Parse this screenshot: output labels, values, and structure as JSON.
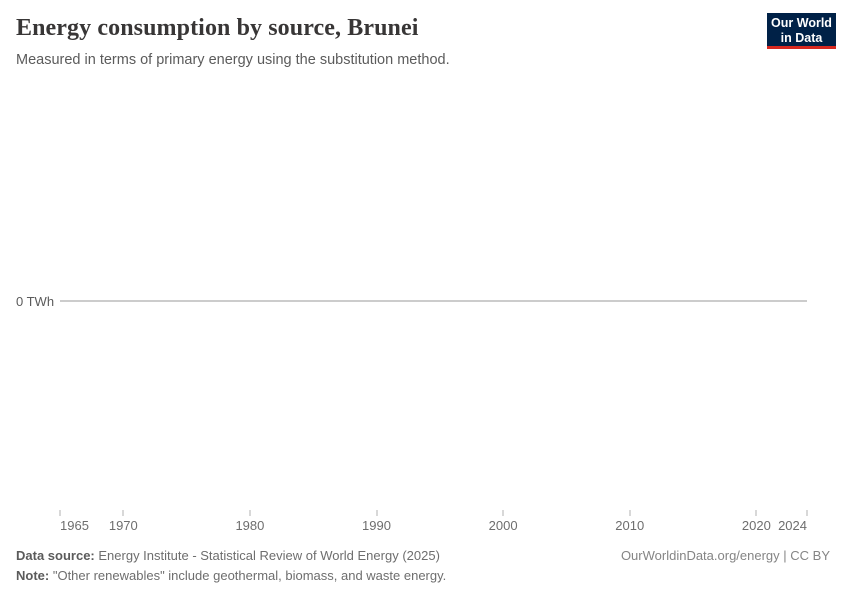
{
  "header": {
    "title": "Energy consumption by source, Brunei",
    "subtitle": "Measured in terms of primary energy using the substitution method."
  },
  "logo": {
    "line1": "Our World",
    "line2": "in Data",
    "bg_color": "#002147",
    "accent_color": "#d8281f"
  },
  "chart_data": {
    "type": "line",
    "title": "Energy consumption by source, Brunei",
    "subtitle": "Measured in terms of primary energy using the substitution method.",
    "unit": "TWh",
    "x_axis": {
      "range": [
        1965,
        2024
      ],
      "ticks": [
        1965,
        1970,
        1980,
        1990,
        2000,
        2010,
        2020,
        2024
      ]
    },
    "y_axis": {
      "ticks": [
        {
          "value": 0,
          "label": "0 TWh"
        }
      ]
    },
    "series": [],
    "grid": false,
    "legend": "none"
  },
  "colors": {
    "axis_line": "#cccccc",
    "tick_mark": "#b0b0b0",
    "tick_label": "#6e6e6e",
    "title": "#383636",
    "subtitle": "#5b5b5b"
  },
  "footer": {
    "source_label": "Data source:",
    "source_text": "Energy Institute - Statistical Review of World Energy (2025)",
    "note_label": "Note:",
    "note_text": "\"Other renewables\" include geothermal, biomass, and waste energy.",
    "link": "OurWorldinData.org/energy | CC BY"
  }
}
